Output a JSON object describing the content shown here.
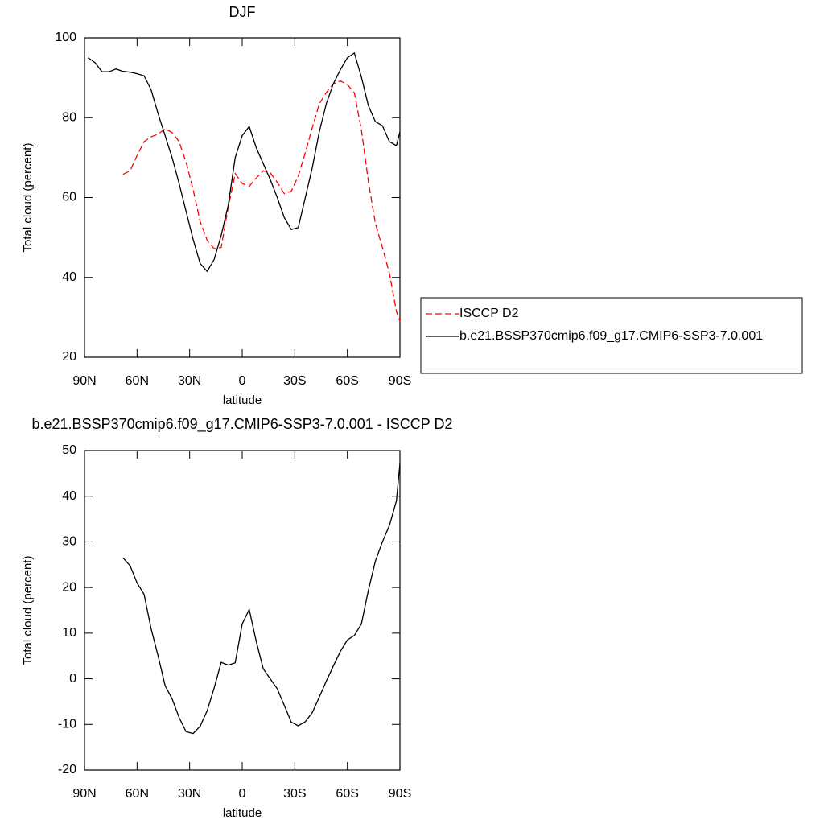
{
  "chart_data": [
    {
      "type": "line",
      "title": "DJF",
      "xlabel": "latitude",
      "ylabel": "Total cloud (percent)",
      "x": [
        88,
        84,
        80,
        76,
        72,
        68,
        64,
        60,
        56,
        52,
        48,
        44,
        40,
        36,
        32,
        28,
        24,
        20,
        16,
        12,
        8,
        4,
        0,
        -4,
        -8,
        -12,
        -16,
        -20,
        -24,
        -28,
        -32,
        -36,
        -40,
        -44,
        -48,
        -52,
        -56,
        -60,
        -64,
        -68,
        -72,
        -76,
        -80,
        -84,
        -88,
        -90
      ],
      "xlim": [
        90,
        -90
      ],
      "xticks": [
        {
          "value": 90,
          "label": "90N"
        },
        {
          "value": 60,
          "label": "60N"
        },
        {
          "value": 30,
          "label": "30N"
        },
        0,
        {
          "value": -30,
          "label": "30S"
        },
        {
          "value": -60,
          "label": "60S"
        },
        {
          "value": -90,
          "label": "90S"
        }
      ],
      "ylim": [
        20,
        100
      ],
      "yticks": [
        20,
        40,
        60,
        80,
        100
      ],
      "legend": "right",
      "series": [
        {
          "name": "ISCCP D2",
          "color": "#ff0000",
          "dash": true,
          "values": [
            null,
            null,
            null,
            null,
            null,
            65.8,
            66.7,
            70.5,
            74,
            75.2,
            75.9,
            77.2,
            76.3,
            74,
            68.8,
            62,
            54,
            49.3,
            47.2,
            47.5,
            57.5,
            66,
            63.5,
            62.8,
            64.9,
            66.7,
            66.2,
            63.8,
            61,
            61.6,
            65.4,
            71.2,
            77.5,
            83.5,
            86.3,
            88.5,
            89.2,
            88.3,
            86.2,
            77,
            64,
            53.5,
            47.5,
            41,
            31.5,
            29
          ]
        },
        {
          "name": "b.e21.BSSP370cmip6.f09_g17.CMIP6-SSP3-7.0.001",
          "color": "#000000",
          "dash": false,
          "values": [
            95,
            93.8,
            91.5,
            91.5,
            92.2,
            91.6,
            91.4,
            91,
            90.5,
            87,
            81,
            75.5,
            70,
            63.5,
            56.5,
            49.5,
            43.5,
            41.5,
            44.5,
            50.5,
            58,
            70,
            75.5,
            77.8,
            72.5,
            68.5,
            64.5,
            60,
            55,
            52,
            52.5,
            60,
            67.5,
            76.5,
            83.5,
            88.5,
            92,
            95,
            96.2,
            90.2,
            83,
            79,
            78,
            74,
            73,
            76.5
          ]
        }
      ]
    },
    {
      "type": "line",
      "title": "b.e21.BSSP370cmip6.f09_g17.CMIP6-SSP3-7.0.001 - ISCCP D2",
      "xlabel": "latitude",
      "ylabel": "Total cloud (percent)",
      "x": [
        88,
        84,
        80,
        76,
        72,
        68,
        64,
        60,
        56,
        52,
        48,
        44,
        40,
        36,
        32,
        28,
        24,
        20,
        16,
        12,
        8,
        4,
        0,
        -4,
        -8,
        -12,
        -16,
        -20,
        -24,
        -28,
        -32,
        -36,
        -40,
        -44,
        -48,
        -52,
        -56,
        -60,
        -64,
        -68,
        -72,
        -76,
        -80,
        -84,
        -88,
        -90
      ],
      "xlim": [
        90,
        -90
      ],
      "xticks": [
        {
          "value": 90,
          "label": "90N"
        },
        {
          "value": 60,
          "label": "60N"
        },
        {
          "value": 30,
          "label": "30N"
        },
        0,
        {
          "value": -30,
          "label": "30S"
        },
        {
          "value": -60,
          "label": "60S"
        },
        {
          "value": -90,
          "label": "90S"
        }
      ],
      "ylim": [
        -20,
        50
      ],
      "yticks": [
        -20,
        -10,
        0,
        10,
        20,
        30,
        40,
        50
      ],
      "values": [
        null,
        null,
        null,
        null,
        null,
        26.5,
        24.8,
        21,
        18.5,
        11,
        5,
        -1.5,
        -4.4,
        -8.5,
        -11.6,
        -12,
        -10.4,
        -7,
        -2,
        3.6,
        3,
        3.5,
        12,
        15.2,
        8.2,
        2.2,
        0,
        -2.2,
        -5.8,
        -9.5,
        -10.3,
        -9.4,
        -7.4,
        -4,
        -0.5,
        2.8,
        6,
        8.5,
        9.5,
        12,
        19.4,
        25.8,
        30,
        33.6,
        39,
        47.2
      ],
      "color": "#000000"
    }
  ]
}
